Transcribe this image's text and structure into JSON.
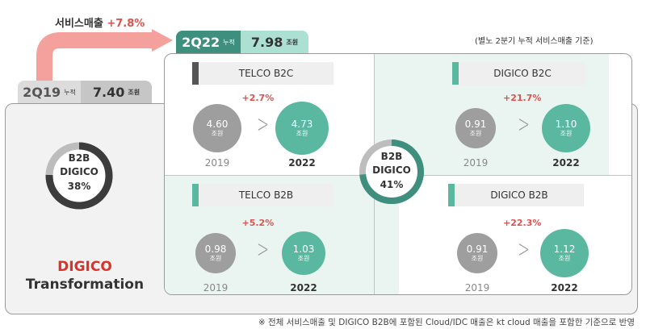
{
  "growth_label": {
    "text": "서비스매출",
    "pct": "+7.8%"
  },
  "note": "(별노 2분기 누적 서비스매출 기준)",
  "tab_2019": {
    "period": "2Q19",
    "sub": "누적",
    "value": "7.40",
    "unit": "조원"
  },
  "tab_2022": {
    "period": "2Q22",
    "sub": "누적",
    "value": "7.98",
    "unit": "조원"
  },
  "left_donut": {
    "line1": "B2B",
    "line2": "DIGICO",
    "pct": "38%",
    "share": 0.38
  },
  "center_donut": {
    "line1": "B2B",
    "line2": "DIGICO",
    "pct": "41%",
    "share": 0.41
  },
  "transformation": {
    "red": "DIGICO",
    "black": "Transformation"
  },
  "quadrants": [
    {
      "title": "TELCO B2C",
      "growth": "+2.7%",
      "v2019": "4.60",
      "v2022": "4.73",
      "unit": "조원",
      "y2019": "2019",
      "y2022": "2022"
    },
    {
      "title": "DIGICO B2C",
      "growth": "+21.7%",
      "v2019": "0.91",
      "v2022": "1.10",
      "unit": "조원",
      "y2019": "2019",
      "y2022": "2022"
    },
    {
      "title": "TELCO B2B",
      "growth": "+5.2%",
      "v2019": "0.98",
      "v2022": "1.03",
      "unit": "조원",
      "y2019": "2019",
      "y2022": "2022"
    },
    {
      "title": "DIGICO B2B",
      "growth": "+22.3%",
      "v2019": "0.91",
      "v2022": "1.12",
      "unit": "조원",
      "y2019": "2019",
      "y2022": "2022"
    }
  ],
  "footnote": "※ 전체 서비스매출 및 DIGICO B2B에 포함된 Cloud/IDC 매출은 kt cloud 매출을 포함한 기준으로 반영",
  "colors": {
    "teal": "#3f8f7e",
    "mint": "#5bb8a0",
    "red": "#d9534f",
    "arrow": "#f4a09c",
    "dark": "#444444"
  }
}
